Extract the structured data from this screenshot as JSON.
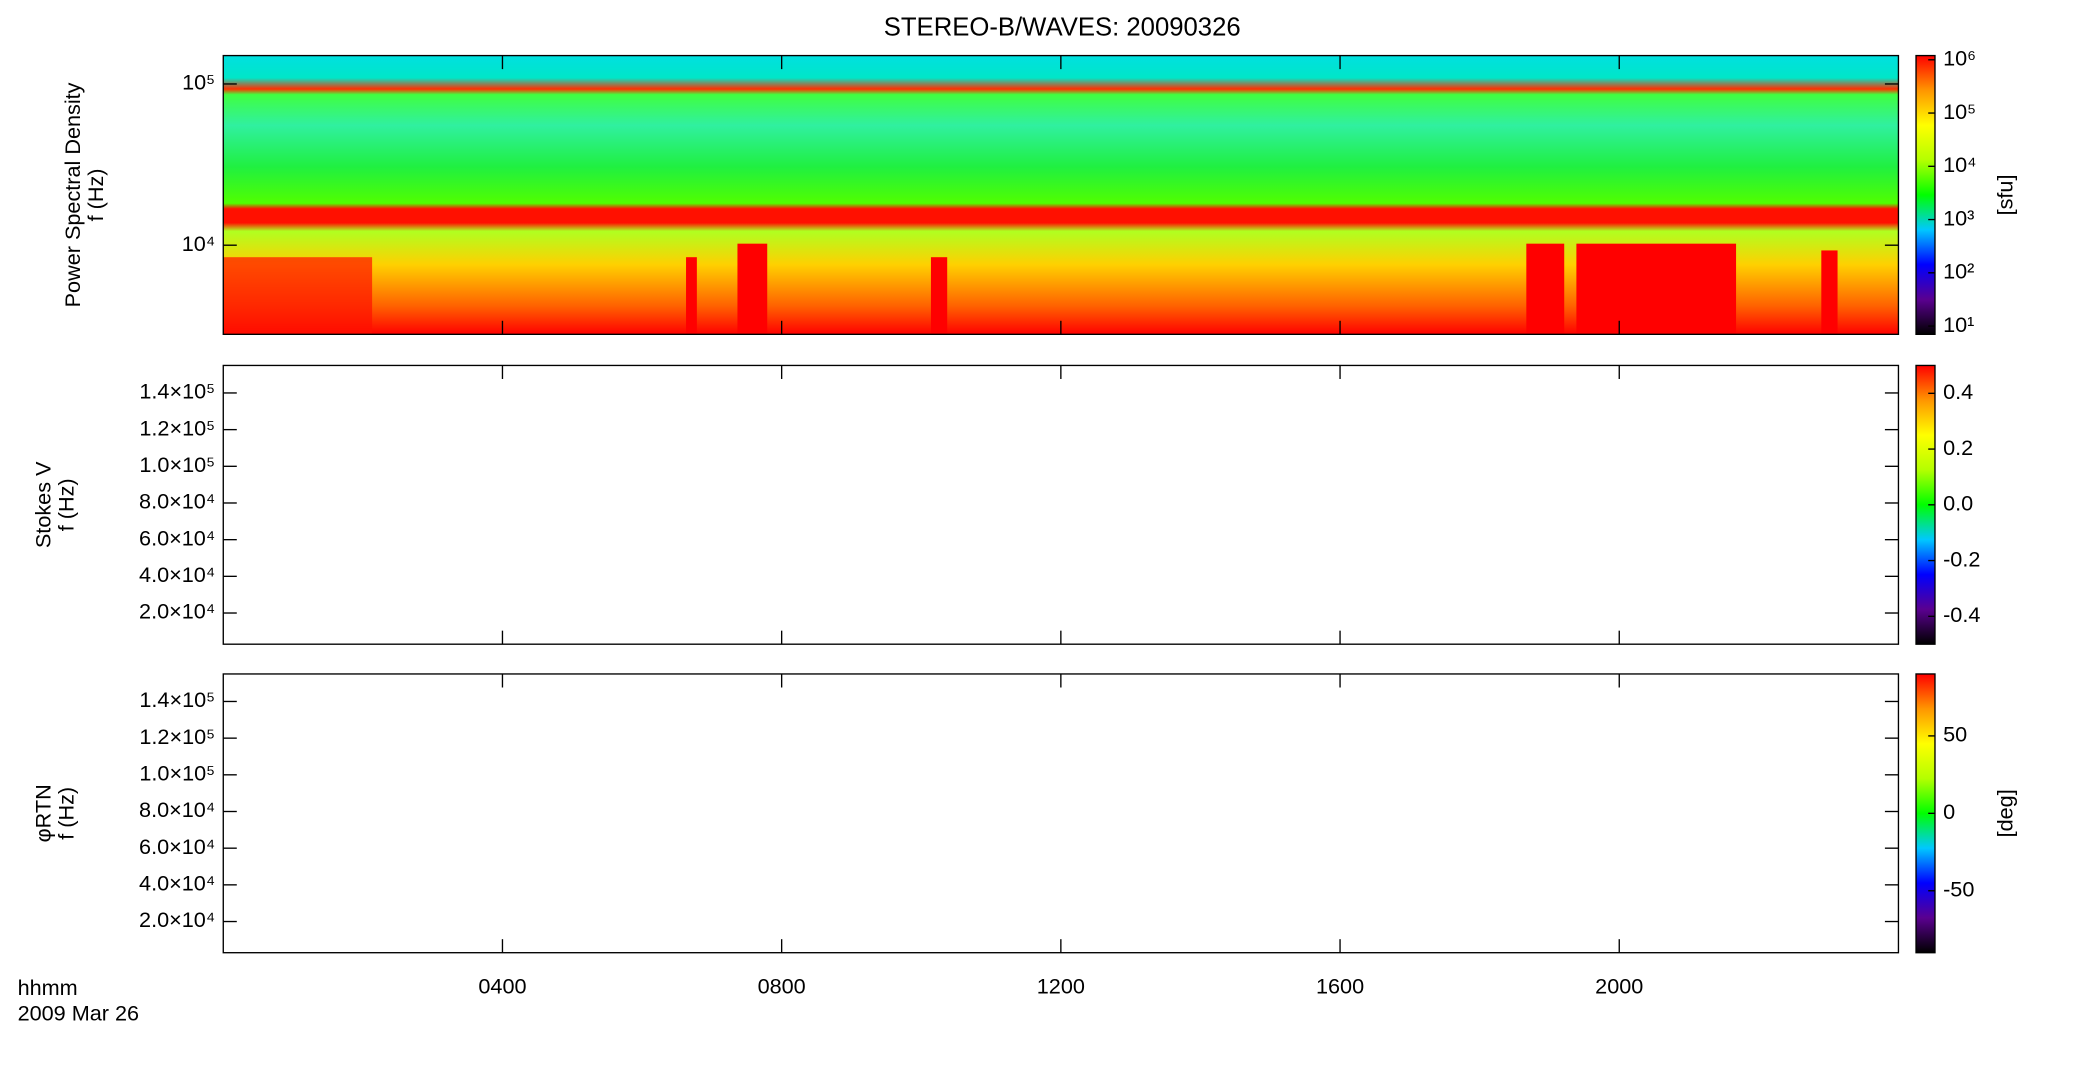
{
  "title": "STEREO-B/WAVES: 20090326",
  "colormap": [
    "#000000",
    "#5a0090",
    "#0000ff",
    "#00c8ff",
    "#00ff00",
    "#b4ff00",
    "#ffff00",
    "#ff9600",
    "#ff0000"
  ],
  "time_axis": {
    "xlim": [
      0,
      24
    ],
    "xticks": [
      {
        "value": 4,
        "label": "0400"
      },
      {
        "value": 8,
        "label": "0800"
      },
      {
        "value": 12,
        "label": "1200"
      },
      {
        "value": 16,
        "label": "1600"
      },
      {
        "value": 20,
        "label": "2000"
      }
    ],
    "xlabel": "hhmm",
    "date": "2009 Mar 26"
  },
  "chart_data": [
    {
      "type": "heatmap",
      "ylabel": [
        "Power Spectral Density",
        "f (Hz)"
      ],
      "ylog": true,
      "ylim": [
        2800,
        150000
      ],
      "yticks": [
        {
          "value": 10000,
          "label": "10⁴"
        },
        {
          "value": 100000,
          "label": "10⁵"
        }
      ],
      "colorbar_label": "[sfu]",
      "clog": true,
      "clim": [
        7,
        1200000
      ],
      "cticks": [
        {
          "value": 10,
          "label": "10¹"
        },
        {
          "value": 100,
          "label": "10²"
        },
        {
          "value": 1000,
          "label": "10³"
        },
        {
          "value": 10000,
          "label": "10⁴"
        },
        {
          "value": 100000,
          "label": "10⁵"
        },
        {
          "value": 1000000,
          "label": "10⁶"
        }
      ]
    },
    {
      "type": "heatmap",
      "ylabel": [
        "Stokes V",
        "f (Hz)"
      ],
      "ylog": false,
      "ylim": [
        3000,
        155000
      ],
      "yticks": [
        {
          "value": 20000,
          "label": "2.0×10⁴"
        },
        {
          "value": 40000,
          "label": "4.0×10⁴"
        },
        {
          "value": 60000,
          "label": "6.0×10⁴"
        },
        {
          "value": 80000,
          "label": "8.0×10⁴"
        },
        {
          "value": 100000,
          "label": "1.0×10⁵"
        },
        {
          "value": 120000,
          "label": "1.2×10⁵"
        },
        {
          "value": 140000,
          "label": "1.4×10⁵"
        }
      ],
      "clog": false,
      "clim": [
        -0.5,
        0.5
      ],
      "cticks": [
        {
          "value": -0.4,
          "label": "-0.4"
        },
        {
          "value": -0.2,
          "label": "-0.2"
        },
        {
          "value": 0,
          "label": "0.0"
        },
        {
          "value": 0.2,
          "label": "0.2"
        },
        {
          "value": 0.4,
          "label": "0.4"
        }
      ]
    },
    {
      "type": "heatmap",
      "ylabel": [
        "φRTN",
        "f (Hz)"
      ],
      "ylog": false,
      "ylim": [
        3000,
        155000
      ],
      "yticks": [
        {
          "value": 20000,
          "label": "2.0×10⁴"
        },
        {
          "value": 40000,
          "label": "4.0×10⁴"
        },
        {
          "value": 60000,
          "label": "6.0×10⁴"
        },
        {
          "value": 80000,
          "label": "8.0×10⁴"
        },
        {
          "value": 100000,
          "label": "1.0×10⁵"
        },
        {
          "value": 120000,
          "label": "1.2×10⁵"
        },
        {
          "value": 140000,
          "label": "1.4×10⁵"
        }
      ],
      "colorbar_label": "[deg]",
      "clog": false,
      "clim": [
        -90,
        90
      ],
      "cticks": [
        -50,
        0,
        50
      ]
    }
  ]
}
